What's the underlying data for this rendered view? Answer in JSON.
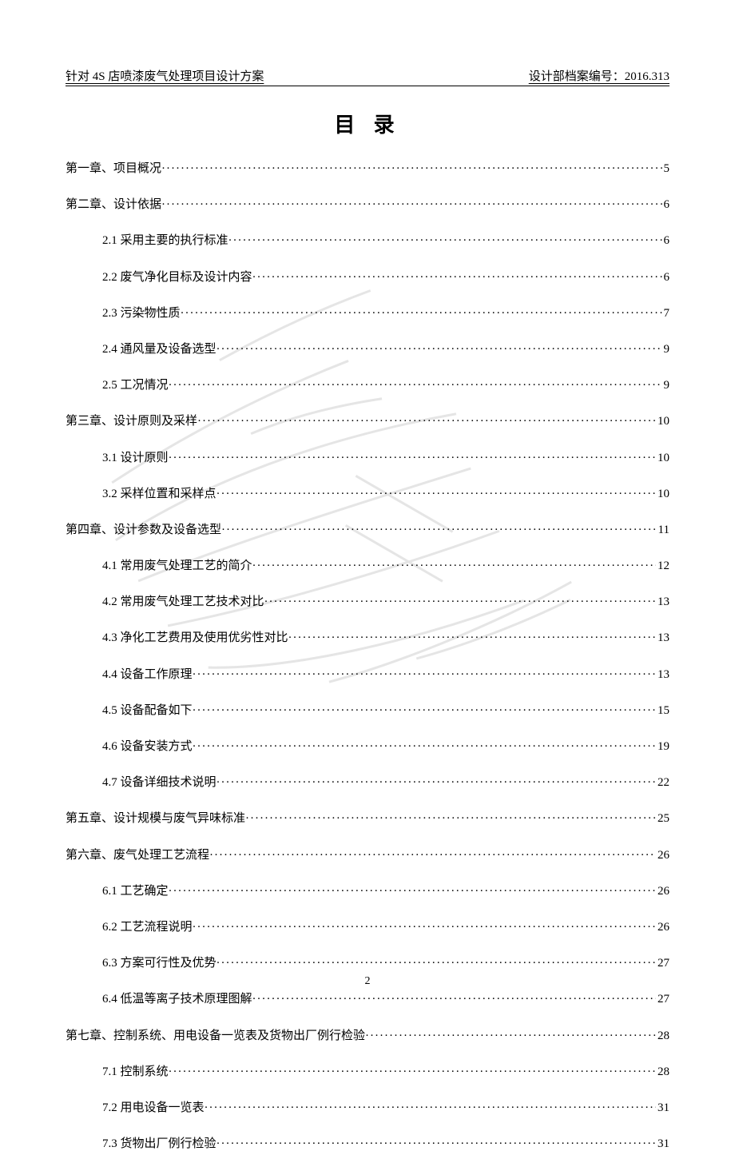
{
  "header": {
    "left": "针对 4S 店喷漆废气处理项目设计方案",
    "right": "设计部档案编号：2016.313"
  },
  "title": "目 录",
  "page_number": "2",
  "watermark": {
    "stroke": "#d0d0d0",
    "opacity": 0.55
  },
  "toc": [
    {
      "level": 0,
      "label": "第一章、项目概况",
      "page": "5"
    },
    {
      "level": 0,
      "label": "第二章、设计依据",
      "page": "6"
    },
    {
      "level": 1,
      "label": "2.1 采用主要的执行标准",
      "page": "6"
    },
    {
      "level": 1,
      "label": "2.2 废气净化目标及设计内容",
      "page": "6"
    },
    {
      "level": 1,
      "label": "2.3 污染物性质",
      "page": "7"
    },
    {
      "level": 1,
      "label": "2.4 通风量及设备选型",
      "page": "9"
    },
    {
      "level": 1,
      "label": "2.5 工况情况",
      "page": "9"
    },
    {
      "level": 0,
      "label": "第三章、设计原则及采样",
      "page": "10"
    },
    {
      "level": 1,
      "label": "3.1 设计原则",
      "page": " 10"
    },
    {
      "level": 1,
      "label": "3.2 采样位置和采样点",
      "page": "10"
    },
    {
      "level": 0,
      "label": "第四章、设计参数及设备选型",
      "page": "11"
    },
    {
      "level": 1,
      "label": "4.1 常用废气处理工艺的简介",
      "page": "12"
    },
    {
      "level": 1,
      "label": "4.2 常用废气处理工艺技术对比",
      "page": "13"
    },
    {
      "level": 1,
      "label": "4.3 净化工艺费用及使用优劣性对比",
      "page": "13"
    },
    {
      "level": 1,
      "label": "4.4 设备工作原理",
      "page": "13"
    },
    {
      "level": 1,
      "label": "4.5 设备配备如下",
      "page": "15"
    },
    {
      "level": 1,
      "label": "4.6 设备安装方式",
      "page": "19"
    },
    {
      "level": 1,
      "label": "4.7 设备详细技术说明",
      "page": "22"
    },
    {
      "level": 0,
      "label": "第五章、设计规模与废气异味标准",
      "page": "25"
    },
    {
      "level": 0,
      "label": "第六章、废气处理工艺流程",
      "page": "26"
    },
    {
      "level": 1,
      "label": "6.1 工艺确定",
      "page": "26"
    },
    {
      "level": 1,
      "label": "6.2 工艺流程说明",
      "page": "26"
    },
    {
      "level": 1,
      "label": "6.3 方案可行性及优势",
      "page": "27"
    },
    {
      "level": 1,
      "label": "6.4 低温等离子技术原理图解",
      "page": "27"
    },
    {
      "level": 0,
      "label": "第七章、控制系统、用电设备一览表及货物出厂例行检验",
      "page": "28"
    },
    {
      "level": 1,
      "label": "7.1 控制系统",
      "page": "28"
    },
    {
      "level": 1,
      "label": "7.2 用电设备一览表",
      "page": "31"
    },
    {
      "level": 1,
      "label": "7.3 货物出厂例行检验",
      "page": "31"
    }
  ]
}
